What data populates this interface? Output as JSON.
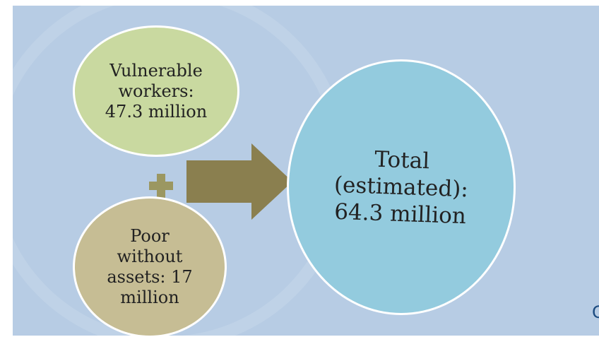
{
  "diagram": {
    "nodes": [
      {
        "id": "vulnerable",
        "text_lines": [
          "Vulnerable",
          "workers:",
          "47.3 million"
        ],
        "color": "#c9d9a0"
      },
      {
        "id": "poor",
        "text_lines": [
          "Poor",
          "without",
          "assets: 17",
          "million"
        ],
        "color": "#c6bd94"
      },
      {
        "id": "total",
        "text_lines": [
          "Total",
          "(estimated):",
          "64.3 million"
        ],
        "color": "#93cbde"
      }
    ],
    "operator": "+",
    "connector": "arrow",
    "colors": {
      "background": "#b7cce4",
      "operator": "#9b9761",
      "arrow": "#8a7f4f",
      "border": "#ffffff"
    }
  },
  "edge_glyph": "C"
}
